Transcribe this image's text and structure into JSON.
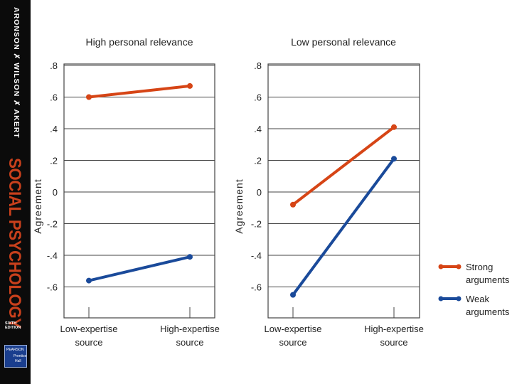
{
  "sidebar": {
    "authors": "ARONSON ✗ WILSON ✗ AKERT",
    "book_title": "SOCIAL PSYCHOLOGY",
    "edition_line1": "SIXTH",
    "edition_line2": "EDITION",
    "publisher_line1": "PEARSON",
    "publisher_line2": "Prentice",
    "publisher_line3": "Hall"
  },
  "colors": {
    "strong": "#d64516",
    "weak": "#1a4a9a",
    "grid": "#444444"
  },
  "chart_data": [
    {
      "type": "line",
      "title": "High personal relevance",
      "ylabel": "Agreement",
      "categories": [
        "Low-expertise source",
        "High-expertise source"
      ],
      "yticks": [
        ".8",
        ".6",
        ".4",
        ".2",
        "0",
        "-.2",
        "-.4",
        "-.6"
      ],
      "ylim": [
        -0.8,
        0.8
      ],
      "series": [
        {
          "name": "Strong arguments",
          "values": [
            0.6,
            0.67
          ]
        },
        {
          "name": "Weak arguments",
          "values": [
            -0.56,
            -0.41
          ]
        }
      ]
    },
    {
      "type": "line",
      "title": "Low personal relevance",
      "ylabel": "Agreement",
      "categories": [
        "Low-expertise source",
        "High-expertise source"
      ],
      "yticks": [
        ".8",
        ".6",
        ".4",
        ".2",
        "0",
        "-.2",
        "-.4",
        "-.6"
      ],
      "ylim": [
        -0.8,
        0.8
      ],
      "series": [
        {
          "name": "Strong arguments",
          "values": [
            -0.08,
            0.41
          ]
        },
        {
          "name": "Weak arguments",
          "values": [
            -0.65,
            0.21
          ]
        }
      ]
    }
  ],
  "legend": {
    "strong": [
      "Strong",
      "arguments"
    ],
    "weak": [
      "Weak",
      "arguments"
    ]
  }
}
